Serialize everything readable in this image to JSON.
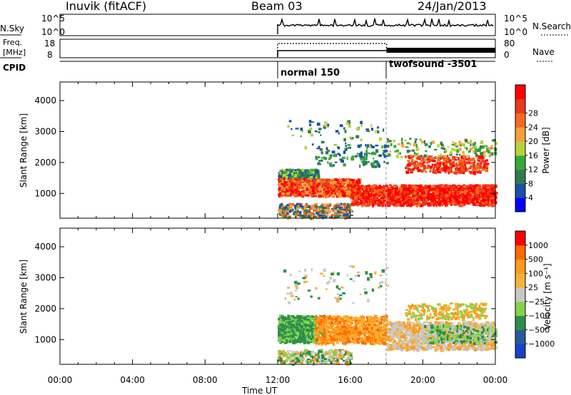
{
  "header": {
    "station": "Inuvik (fitACF)",
    "beam": "Beam 03",
    "date": "24/Jan/2013"
  },
  "noise_panel": {
    "left_label": "N.Sky",
    "left_ticks": [
      "10^5",
      "10^0"
    ],
    "right_label": "N.Search",
    "right_ticks": [
      "10^5",
      "10^0"
    ]
  },
  "freq_panel": {
    "left_label_1": "Freq.",
    "left_label_2": "[MHz]",
    "left_ticks": [
      "18",
      "8"
    ],
    "right_label": "Nave",
    "right_ticks": [
      "80",
      "0"
    ]
  },
  "cpid_panel": {
    "label": "CPID",
    "modes": [
      "normal 150",
      "twofsound -3501"
    ]
  },
  "colors": {
    "power_scale": [
      "#0000ff",
      "#1c4faa",
      "#2f7b52",
      "#39a83a",
      "#b7d43a",
      "#f2a23a",
      "#f26b1e",
      "#e83a1a",
      "#ff0000"
    ],
    "velocity_scale": [
      "#ff0000",
      "#ff6a00",
      "#ff9a1a",
      "#f7b23a",
      "#c8c8c8",
      "#84d44a",
      "#2e8e4a",
      "#275a9a",
      "#1a3fc8"
    ]
  },
  "chart_data": [
    {
      "type": "heatmap",
      "title": "",
      "xlabel": "",
      "ylabel": "Slant Range [km]",
      "y_ticks": [
        "1000",
        "2000",
        "3000",
        "4000"
      ],
      "ylim": [
        200,
        4600
      ],
      "colorbar_label": "Power [dB]",
      "colorbar_ticks": [
        "4",
        "8",
        "12",
        "16",
        "20",
        "24",
        "28"
      ],
      "data_start_ut": "12:00",
      "mode_change_ut": "18:00"
    },
    {
      "type": "heatmap",
      "title": "",
      "xlabel": "Time UT",
      "ylabel": "Slant Range [km]",
      "y_ticks": [
        "1000",
        "2000",
        "3000",
        "4000"
      ],
      "ylim": [
        200,
        4600
      ],
      "colorbar_label": "Velocity [m s⁻¹]",
      "colorbar_ticks": [
        "1000",
        "500",
        "100",
        "25",
        "−25",
        "−100",
        "−500",
        "−1000"
      ],
      "x_ticks": [
        "00:00",
        "04:00",
        "08:00",
        "12:00",
        "16:00",
        "20:00",
        "00:00"
      ]
    }
  ]
}
